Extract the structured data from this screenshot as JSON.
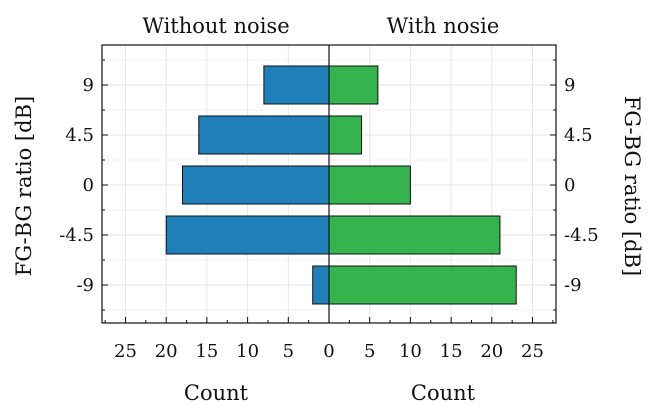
{
  "chart_data": {
    "type": "bar",
    "orientation": "horizontal",
    "layout": "back-to-back",
    "categories": [
      "9",
      "4.5",
      "0",
      "-4.5",
      "-9"
    ],
    "series": [
      {
        "name": "Without noise",
        "values": [
          8,
          16,
          18,
          20,
          2
        ],
        "color": "#1f7fb8",
        "direction": "left"
      },
      {
        "name": "With nosie",
        "values": [
          6,
          4,
          10,
          21,
          23
        ],
        "color": "#35b34d",
        "direction": "right"
      }
    ],
    "left_title": "Without noise",
    "right_title": "With nosie",
    "xlabel_left": "Count",
    "xlabel_right": "Count",
    "ylabel_left": "FG-BG ratio [dB]",
    "ylabel_right": "FG-BG ratio [dB]",
    "xlim": [
      0,
      28
    ],
    "xticks": [
      25,
      20,
      15,
      10,
      5,
      0,
      5,
      10,
      15,
      20,
      25
    ],
    "grid": true
  }
}
